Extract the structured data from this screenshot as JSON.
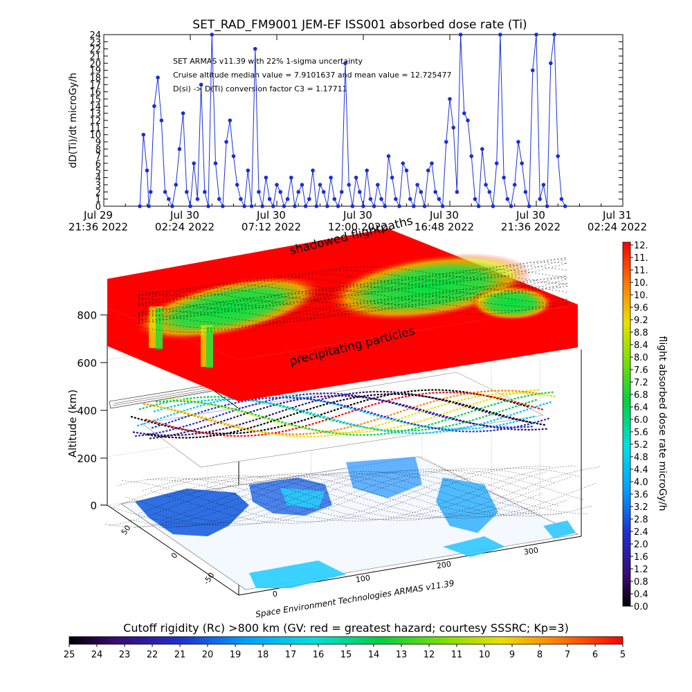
{
  "colors": {
    "series": "#1a2fd6",
    "axis": "#000000",
    "grid": "#aaaaaa",
    "hot": "#ff0000",
    "mid": "#00e040"
  },
  "chart_data": [
    {
      "type": "line",
      "title": "SET_RAD_FM9001  JEM-EF ISS001 absorbed dose rate (Ti)",
      "ylabel": "dD(Ti)/dt microGy/h",
      "ylim": [
        0,
        24
      ],
      "yticks": [
        "0",
        "1",
        "2",
        "3",
        "4",
        "5",
        "6",
        "7",
        "8",
        "9",
        "10",
        "11",
        "12",
        "13",
        "14",
        "15",
        "16",
        "17",
        "18",
        "19",
        "20",
        "21",
        "22",
        "23",
        "24"
      ],
      "xlim_hours": [
        0,
        28.8
      ],
      "xticks": [
        {
          "t": 0,
          "line1": "Jul 29",
          "line2": "21:36 2022"
        },
        {
          "t": 4.8,
          "line1": "Jul 30",
          "line2": "02:24 2022"
        },
        {
          "t": 9.6,
          "line1": "Jul 30",
          "line2": "07:12 2022"
        },
        {
          "t": 14.4,
          "line1": "Jul 30",
          "line2": "12:00 2022"
        },
        {
          "t": 19.2,
          "line1": "Jul 30",
          "line2": "16:48 2022"
        },
        {
          "t": 24.0,
          "line1": "Jul 30",
          "line2": "21:36 2022"
        },
        {
          "t": 28.8,
          "line1": "Jul 31",
          "line2": "02:24 2022"
        }
      ],
      "annotations": [
        "SET ARMAS v11.39 with 22% 1-sigma uncertainty",
        "Cruise altitude median value = 7.9101637 and mean value = 12.725477",
        "D(si) -> D(Ti) conversion factor C3 = 1.17711"
      ],
      "series": [
        {
          "x_hours": [
            2.0,
            2.2,
            2.4,
            2.5,
            2.6,
            2.8,
            3.0,
            3.2,
            3.4,
            3.6,
            3.8,
            4.0,
            4.2,
            4.4,
            4.6,
            4.8,
            5.0,
            5.2,
            5.4,
            5.6,
            5.8,
            6.0,
            6.2,
            6.4,
            6.6,
            6.8,
            7.0,
            7.2,
            7.4,
            7.6,
            7.8,
            8.0,
            8.2,
            8.4,
            8.6,
            8.8,
            9.0,
            9.2,
            9.4,
            9.6,
            9.8,
            10.0,
            10.2,
            10.4,
            10.6,
            10.8,
            11.0,
            11.2,
            11.4,
            11.6,
            11.8,
            12.0,
            12.2,
            12.4,
            12.6,
            12.8,
            13.0,
            13.2,
            13.4,
            13.6,
            13.8,
            14.0,
            14.2,
            14.4,
            14.6,
            14.8,
            15.0,
            15.2,
            15.4,
            15.6,
            15.8,
            16.0,
            16.2,
            16.4,
            16.6,
            16.8,
            17.0,
            17.2,
            17.4,
            17.6,
            17.8,
            18.0,
            18.2,
            18.4,
            18.6,
            18.8,
            19.0,
            19.2,
            19.4,
            19.6,
            19.8,
            20.0,
            20.2,
            20.4,
            20.6,
            20.8,
            21.0,
            21.2,
            21.4,
            21.6,
            21.8,
            22.0,
            22.2,
            22.4,
            22.6,
            22.8,
            23.0,
            23.2,
            23.4,
            23.6,
            23.8,
            24.0,
            24.2,
            24.4,
            24.6,
            24.8,
            25.0,
            25.2,
            25.4,
            25.6
          ],
          "y": [
            0,
            10,
            5,
            0,
            2,
            14,
            18,
            12,
            2,
            1,
            0,
            3,
            8,
            13,
            2,
            0,
            6,
            1,
            17,
            2,
            0,
            24,
            6,
            1,
            0,
            9,
            12,
            7,
            3,
            1,
            0,
            5,
            0,
            22,
            2,
            0,
            4,
            1,
            0,
            3,
            2,
            0,
            1,
            4,
            0,
            2,
            3,
            0,
            1,
            5,
            0,
            3,
            2,
            0,
            4,
            1,
            0,
            2,
            20,
            3,
            0,
            4,
            2,
            0,
            5,
            1,
            0,
            3,
            1,
            0,
            7,
            4,
            1,
            0,
            6,
            5,
            1,
            0,
            3,
            2,
            0,
            5,
            6,
            2,
            1,
            0,
            9,
            15,
            11,
            2,
            24,
            13,
            12,
            7,
            1,
            0,
            8,
            3,
            2,
            0,
            6,
            24,
            4,
            1,
            0,
            3,
            9,
            6,
            2,
            0,
            19,
            24,
            1,
            3,
            0,
            20,
            24,
            7,
            1,
            0
          ],
          "name": ""
        }
      ]
    },
    {
      "type": "heatmap",
      "title": "",
      "zlabel": "Altitude (km)",
      "zticks": [
        "0",
        "200",
        "400",
        "600",
        "800"
      ],
      "latticks": [
        "-50",
        "0",
        "50"
      ],
      "lonticks": [
        "0",
        "100",
        "200",
        "300"
      ],
      "top_layer_labels": [
        "shadowed flightpaths",
        "precipitating particles"
      ],
      "credit": "Space Environment Technologies ARMAS v11.39"
    },
    {
      "type": "heatmap",
      "title": "flight absorbed dose rate microGy/h",
      "colorbar": "vertical",
      "ticks": [
        "0.0",
        "0.4",
        "0.8",
        "1.2",
        "1.6",
        "2.0",
        "2.4",
        "2.8",
        "3.2",
        "3.6",
        "4.0",
        "4.4",
        "4.8",
        "5.2",
        "5.6",
        "6.0",
        "6.4",
        "6.8",
        "7.2",
        "7.6",
        "8.0",
        "8.4",
        "8.8",
        "9.2",
        "9.6",
        "10.",
        "10.",
        "11.",
        "11.",
        "12."
      ]
    },
    {
      "type": "heatmap",
      "title": "Cutoff rigidity (Rc) >800 km (GV: red = greatest hazard; courtesy SSSRC; Kp=3)",
      "colorbar": "horizontal",
      "ticks": [
        "25",
        "24",
        "23",
        "22",
        "21",
        "20",
        "19",
        "18",
        "17",
        "16",
        "15",
        "14",
        "13",
        "12",
        "11",
        "10",
        "9",
        "8",
        "7",
        "6",
        "5"
      ]
    }
  ]
}
